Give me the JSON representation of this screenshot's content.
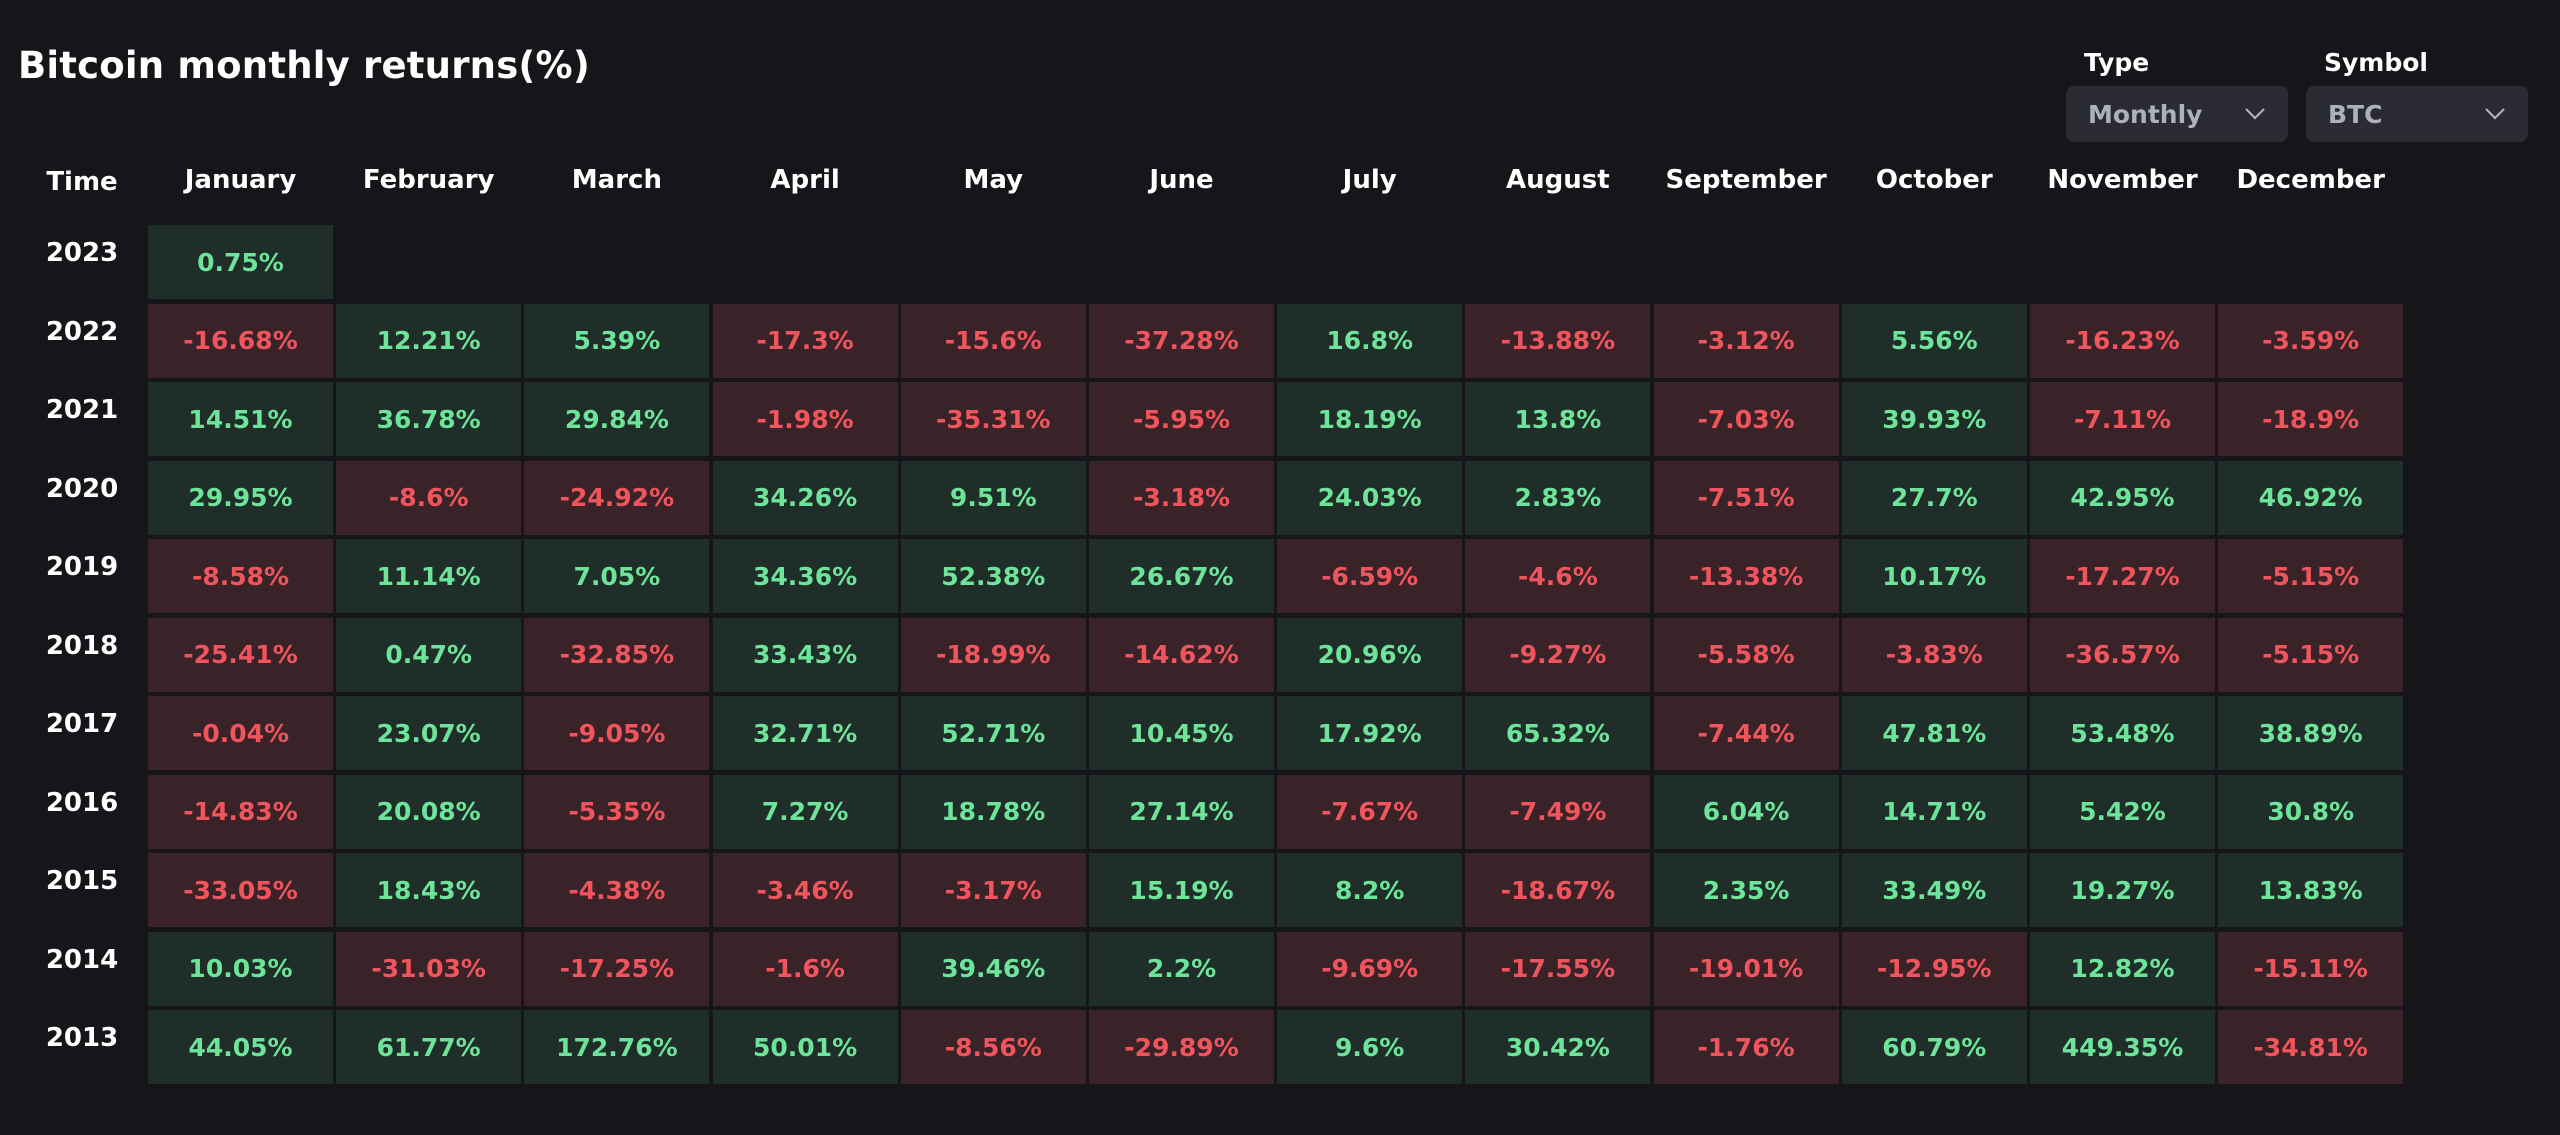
{
  "page_title": "Bitcoin monthly returns(%)",
  "controls": {
    "type": {
      "label": "Type",
      "value": "Monthly"
    },
    "symbol": {
      "label": "Symbol",
      "value": "BTC"
    }
  },
  "colors": {
    "positive_bg": "#1f2e28",
    "positive_text": "#6ee39a",
    "negative_bg": "#3a2328",
    "negative_text": "#f0545c",
    "background": "#16161a"
  },
  "table": {
    "time_header": "Time",
    "months": [
      "January",
      "February",
      "March",
      "April",
      "May",
      "June",
      "July",
      "August",
      "September",
      "October",
      "November",
      "December"
    ],
    "rows": [
      {
        "year": "2023",
        "values": [
          "0.75%"
        ]
      },
      {
        "year": "2022",
        "values": [
          "-16.68%",
          "12.21%",
          "5.39%",
          "-17.3%",
          "-15.6%",
          "-37.28%",
          "16.8%",
          "-13.88%",
          "-3.12%",
          "5.56%",
          "-16.23%",
          "-3.59%"
        ]
      },
      {
        "year": "2021",
        "values": [
          "14.51%",
          "36.78%",
          "29.84%",
          "-1.98%",
          "-35.31%",
          "-5.95%",
          "18.19%",
          "13.8%",
          "-7.03%",
          "39.93%",
          "-7.11%",
          "-18.9%"
        ]
      },
      {
        "year": "2020",
        "values": [
          "29.95%",
          "-8.6%",
          "-24.92%",
          "34.26%",
          "9.51%",
          "-3.18%",
          "24.03%",
          "2.83%",
          "-7.51%",
          "27.7%",
          "42.95%",
          "46.92%"
        ]
      },
      {
        "year": "2019",
        "values": [
          "-8.58%",
          "11.14%",
          "7.05%",
          "34.36%",
          "52.38%",
          "26.67%",
          "-6.59%",
          "-4.6%",
          "-13.38%",
          "10.17%",
          "-17.27%",
          "-5.15%"
        ]
      },
      {
        "year": "2018",
        "values": [
          "-25.41%",
          "0.47%",
          "-32.85%",
          "33.43%",
          "-18.99%",
          "-14.62%",
          "20.96%",
          "-9.27%",
          "-5.58%",
          "-3.83%",
          "-36.57%",
          "-5.15%"
        ]
      },
      {
        "year": "2017",
        "values": [
          "-0.04%",
          "23.07%",
          "-9.05%",
          "32.71%",
          "52.71%",
          "10.45%",
          "17.92%",
          "65.32%",
          "-7.44%",
          "47.81%",
          "53.48%",
          "38.89%"
        ]
      },
      {
        "year": "2016",
        "values": [
          "-14.83%",
          "20.08%",
          "-5.35%",
          "7.27%",
          "18.78%",
          "27.14%",
          "-7.67%",
          "-7.49%",
          "6.04%",
          "14.71%",
          "5.42%",
          "30.8%"
        ]
      },
      {
        "year": "2015",
        "values": [
          "-33.05%",
          "18.43%",
          "-4.38%",
          "-3.46%",
          "-3.17%",
          "15.19%",
          "8.2%",
          "-18.67%",
          "2.35%",
          "33.49%",
          "19.27%",
          "13.83%"
        ]
      },
      {
        "year": "2014",
        "values": [
          "10.03%",
          "-31.03%",
          "-17.25%",
          "-1.6%",
          "39.46%",
          "2.2%",
          "-9.69%",
          "-17.55%",
          "-19.01%",
          "-12.95%",
          "12.82%",
          "-15.11%"
        ]
      },
      {
        "year": "2013",
        "values": [
          "44.05%",
          "61.77%",
          "172.76%",
          "50.01%",
          "-8.56%",
          "-29.89%",
          "9.6%",
          "30.42%",
          "-1.76%",
          "60.79%",
          "449.35%",
          "-34.81%"
        ]
      }
    ]
  }
}
